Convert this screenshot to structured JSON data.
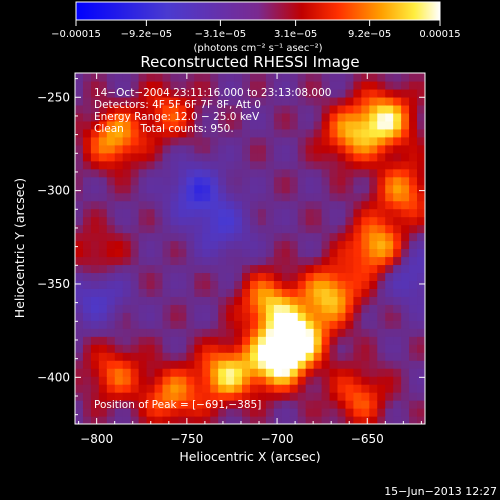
{
  "chart_data": {
    "type": "heatmap",
    "title": "Reconstructed RHESSI Image",
    "xlabel": "Heliocentric X (arcsec)",
    "ylabel": "Heliocentric Y (arcsec)",
    "xlim": [
      -812,
      -618
    ],
    "ylim": [
      -425,
      -237
    ],
    "x_ticks": [
      -800,
      -750,
      -700,
      -650
    ],
    "x_tick_labels": [
      "−800",
      "−750",
      "−700",
      "−650"
    ],
    "y_ticks": [
      -250,
      -300,
      -350,
      -400
    ],
    "y_tick_labels": [
      "−250",
      "−300",
      "−350",
      "−400"
    ],
    "colorbar": {
      "min": -0.00015,
      "max": 0.00015,
      "ticks": [
        -0.00015,
        -9.2e-05,
        -3.1e-05,
        3.1e-05,
        9.2e-05,
        0.00015
      ],
      "tick_labels": [
        "−0.00015",
        "−9.2e−05",
        "−3.1e−05",
        "3.1e−05",
        "9.2e−05",
        "0.00015"
      ],
      "unit_label": "(photons cm⁻² s⁻¹ asec⁻²)"
    },
    "annotations": [
      "14−Oct−2004 23:11:16.000 to 23:13:08.000",
      "Detectors: 4F 5F 6F 7F 8F, Att 0",
      "Energy Range: 12.0 − 25.0 keV",
      "Clean     Total counts: 950."
    ],
    "peak_label": "Position of Peak = [−691,−385]",
    "peak": [
      -691,
      -385
    ],
    "sources": [
      {
        "x": -700,
        "y": -390,
        "amplitude": 1.0
      },
      {
        "x": -688,
        "y": -378,
        "amplitude": 0.9
      },
      {
        "x": -728,
        "y": -398,
        "amplitude": 0.8
      },
      {
        "x": -670,
        "y": -355,
        "amplitude": 0.75
      },
      {
        "x": -705,
        "y": -360,
        "amplitude": 0.7
      },
      {
        "x": -645,
        "y": -330,
        "amplitude": 0.75
      },
      {
        "x": -640,
        "y": -262,
        "amplitude": 0.85
      },
      {
        "x": -660,
        "y": -270,
        "amplitude": 0.6
      },
      {
        "x": -630,
        "y": -300,
        "amplitude": 0.6
      },
      {
        "x": -790,
        "y": -272,
        "amplitude": 0.7
      },
      {
        "x": -760,
        "y": -258,
        "amplitude": 0.45
      },
      {
        "x": -790,
        "y": -398,
        "amplitude": 0.5
      },
      {
        "x": -758,
        "y": -410,
        "amplitude": 0.6
      },
      {
        "x": -655,
        "y": -410,
        "amplitude": 0.5
      },
      {
        "x": -800,
        "y": -335,
        "amplitude": 0.35
      },
      {
        "x": -745,
        "y": -300,
        "amplitude": -0.55
      },
      {
        "x": -800,
        "y": -355,
        "amplitude": -0.45
      },
      {
        "x": -730,
        "y": -320,
        "amplitude": -0.4
      },
      {
        "x": -625,
        "y": -345,
        "amplitude": -0.4
      }
    ],
    "colors": {
      "negative": "#0000ff",
      "zero": "#6a2c8c",
      "positive_mid": "#ff3000",
      "max": "#ffffff"
    }
  },
  "footer": {
    "date": "15−Jun−2013 12:27"
  }
}
